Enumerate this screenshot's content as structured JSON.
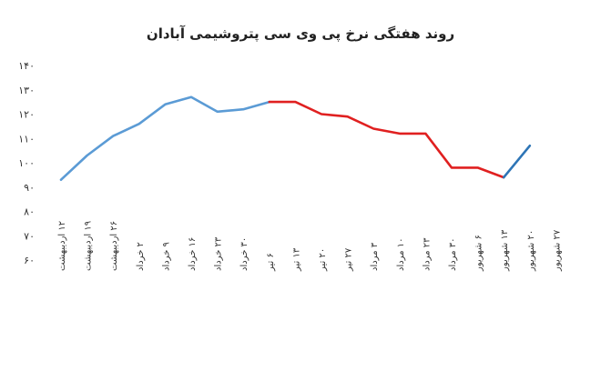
{
  "chart_data": {
    "type": "line",
    "title": "روند هفتگی نرخ پی وی سی پتروشیمی آبادان",
    "xlabel": "",
    "ylabel": "",
    "ylim": [
      60,
      140
    ],
    "yticks": [
      "۶۰",
      "۷۰",
      "۸۰",
      "۹۰",
      "۱۰۰",
      "۱۱۰",
      "۱۲۰",
      "۱۳۰",
      "۱۴۰"
    ],
    "grid": false,
    "categories": [
      "۱۲ اردیبهشت",
      "۱۹ اردیبهشت",
      "۲۶ اردیبهشت",
      "۲ خرداد",
      "۹ خرداد",
      "۱۶ خرداد",
      "۲۳ خرداد",
      "۳۰ خرداد",
      "۶ تیر",
      "۱۳ تیر",
      "۲۰ تیر",
      "۲۷ تیر",
      "۳ مرداد",
      "۱۰ مرداد",
      "۲۳ مرداد",
      "۳۰ مرداد",
      "۶ شهریور",
      "۱۳ شهریور",
      "۲۰ شهریور",
      "۲۷ شهریور"
    ],
    "values": [
      93,
      103,
      111,
      116,
      124,
      127,
      121,
      122,
      125,
      125,
      120,
      119,
      114,
      112,
      112,
      98,
      98,
      94,
      107,
      null
    ],
    "segments": [
      {
        "from": 0,
        "to": 8,
        "color": "#5b9bd5"
      },
      {
        "from": 8,
        "to": 17,
        "color": "#e02020"
      },
      {
        "from": 17,
        "to": 18,
        "color": "#2e75b6"
      }
    ]
  }
}
